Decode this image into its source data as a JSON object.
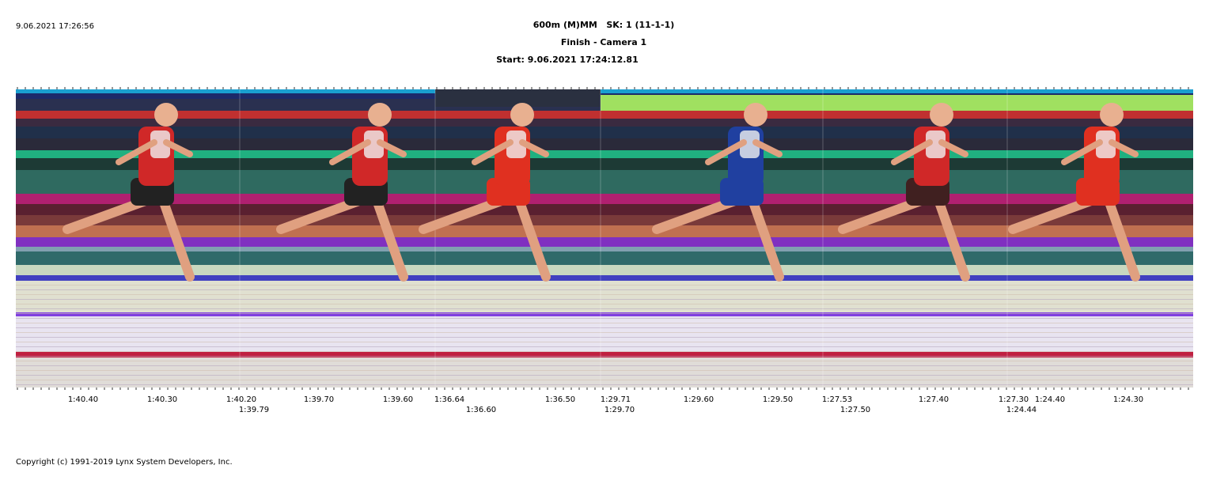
{
  "header": {
    "timestamp": "9.06.2021 17:26:56",
    "title": "600m (M)MM   SK: 1 (11-1-1)",
    "camera": "Finish - Camera 1",
    "start": "Start: 9.06.2021 17:24:12.81"
  },
  "time_labels": {
    "row1": [
      "1:40.40",
      "1:40.30",
      "1:40.20",
      "1:39.70",
      "1:39.60",
      "1:36.64",
      "1:36.50",
      "1:29.71",
      "1:29.60",
      "1:29.50",
      "1:27.53",
      "1:27.40",
      "1:27.30",
      "1:24.40",
      "1:24.30"
    ],
    "row2": [
      "1:39.79",
      "1:36.60",
      "1:29.70",
      "1:27.50",
      "1:24.44"
    ]
  },
  "footer": {
    "copyright": "Copyright (c) 1991-2019 Lynx System Developers, Inc."
  }
}
